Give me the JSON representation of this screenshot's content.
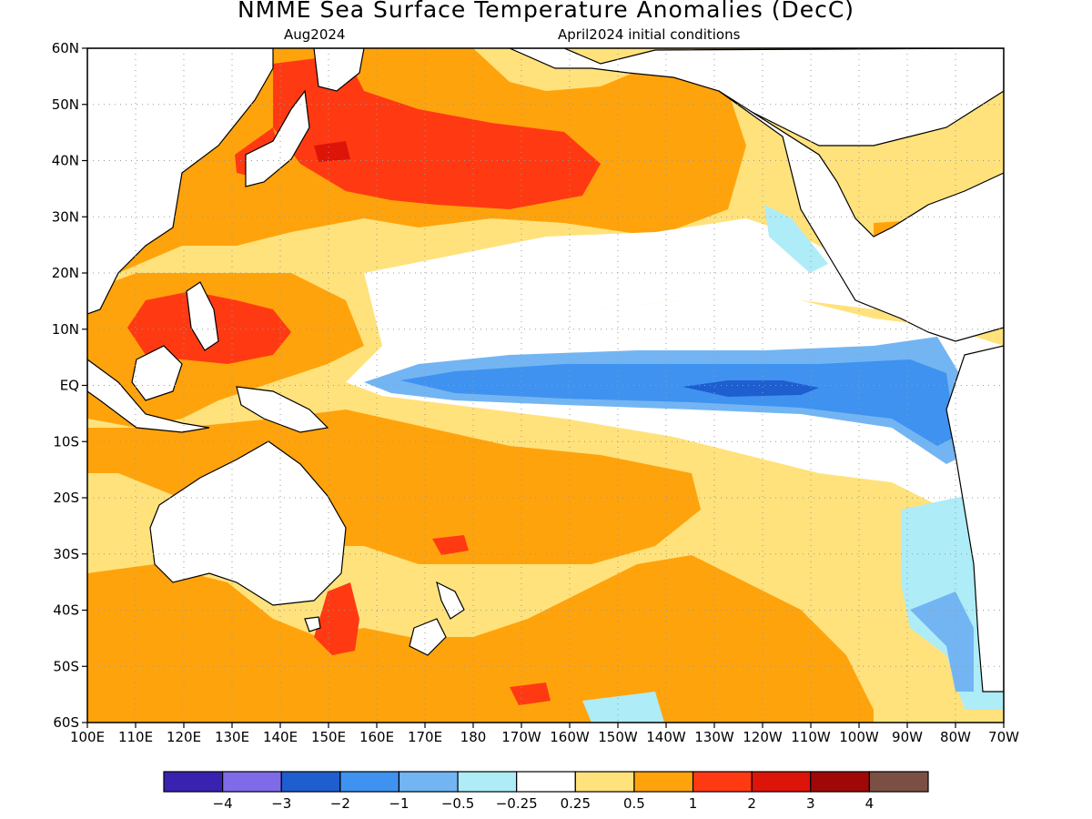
{
  "title": "NMME Sea Surface Temperature Anomalies (DecC)",
  "subtitle_left": "Aug2024",
  "subtitle_right": "April2024 initial conditions",
  "map": {
    "region": "Pacific Ocean",
    "lon_range": [
      "100E",
      "70W"
    ],
    "lat_range": [
      "60S",
      "60N"
    ],
    "grid": true,
    "lat_labels": [
      "60N",
      "50N",
      "40N",
      "30N",
      "20N",
      "10N",
      "EQ",
      "10S",
      "20S",
      "30S",
      "40S",
      "50S",
      "60S"
    ],
    "lon_labels": [
      "100E",
      "110E",
      "120E",
      "130E",
      "140E",
      "150E",
      "160E",
      "170E",
      "180",
      "170W",
      "160W",
      "150W",
      "140W",
      "130W",
      "120W",
      "110W",
      "100W",
      "90W",
      "80W",
      "70W"
    ]
  },
  "legend": {
    "colors": [
      "#3a22b0",
      "#7f6be8",
      "#1e5ecf",
      "#3f92f0",
      "#73b5f3",
      "#aeecf7",
      "#ffffff",
      "#ffe27c",
      "#ffa30c",
      "#ff3a12",
      "#dd1408",
      "#a00808",
      "#7a5045"
    ],
    "labels": [
      "−4",
      "−3",
      "−2",
      "−1",
      "−0.5",
      "−0.25",
      "0.25",
      "0.5",
      "1",
      "2",
      "3",
      "4"
    ]
  },
  "colors": {
    "land": "#ffffff",
    "coast": "#000000",
    "weak_warm": "#ffe27c",
    "warm": "#ffa30c",
    "strong_warm": "#ff3a12",
    "very_warm": "#dd1408",
    "weak_cool": "#aeecf7",
    "cool": "#73b5f3",
    "moderate_cool": "#3f92f0",
    "strong_cool": "#1e5ecf"
  }
}
